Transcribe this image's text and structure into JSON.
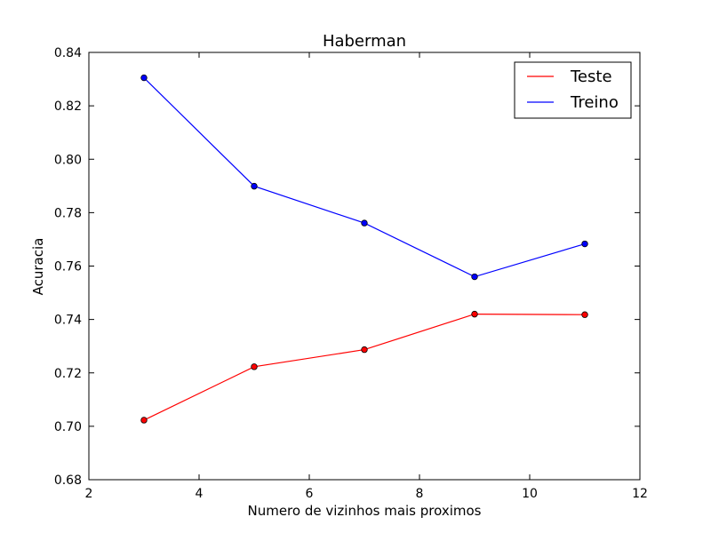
{
  "chart_data": {
    "type": "line",
    "title": "Haberman",
    "xlabel": "Numero de vizinhos mais proximos",
    "ylabel": "Acuracia",
    "xlim": [
      2,
      12
    ],
    "ylim": [
      0.68,
      0.84
    ],
    "x_ticks": [
      2,
      4,
      6,
      8,
      10,
      12
    ],
    "x_tick_labels": [
      "2",
      "4",
      "6",
      "8",
      "10",
      "12"
    ],
    "y_ticks": [
      0.68,
      0.7,
      0.72,
      0.74,
      0.76,
      0.78,
      0.8,
      0.82,
      0.84
    ],
    "y_tick_labels": [
      "0.68",
      "0.70",
      "0.72",
      "0.74",
      "0.76",
      "0.78",
      "0.80",
      "0.82",
      "0.84"
    ],
    "grid": false,
    "legend_position": "top-right",
    "x": [
      3,
      5,
      7,
      9,
      11
    ],
    "series": [
      {
        "name": "Teste",
        "color": "#ff0000",
        "values": [
          0.7023,
          0.7223,
          0.7287,
          0.742,
          0.7418
        ]
      },
      {
        "name": "Treino",
        "color": "#0000ff",
        "values": [
          0.8305,
          0.7899,
          0.7761,
          0.756,
          0.7683
        ]
      }
    ],
    "marker_style": "circle"
  }
}
